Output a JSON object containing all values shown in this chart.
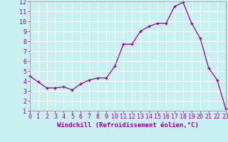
{
  "x": [
    0,
    1,
    2,
    3,
    4,
    5,
    6,
    7,
    8,
    9,
    10,
    11,
    12,
    13,
    14,
    15,
    16,
    17,
    18,
    19,
    20,
    21,
    22,
    23
  ],
  "y": [
    4.5,
    3.9,
    3.3,
    3.3,
    3.4,
    3.1,
    3.7,
    4.1,
    4.3,
    4.3,
    5.5,
    7.7,
    7.7,
    9.0,
    9.5,
    9.8,
    9.8,
    11.5,
    11.9,
    9.8,
    8.3,
    5.3,
    4.1,
    1.2
  ],
  "line_color": "#990099",
  "marker": "+",
  "marker_size": 3,
  "marker_linewidth": 1.0,
  "line_width": 0.9,
  "xlabel": "Windchill (Refroidissement éolien,°C)",
  "xlim": [
    0,
    23
  ],
  "ylim": [
    1,
    12
  ],
  "yticks": [
    1,
    2,
    3,
    4,
    5,
    6,
    7,
    8,
    9,
    10,
    11,
    12
  ],
  "xticks": [
    0,
    1,
    2,
    3,
    4,
    5,
    6,
    7,
    8,
    9,
    10,
    11,
    12,
    13,
    14,
    15,
    16,
    17,
    18,
    19,
    20,
    21,
    22,
    23
  ],
  "background_color": "#c8f0f0",
  "grid_color": "#aadddd",
  "xlabel_fontsize": 6.5,
  "tick_fontsize": 6.0,
  "spine_color": "#888888"
}
